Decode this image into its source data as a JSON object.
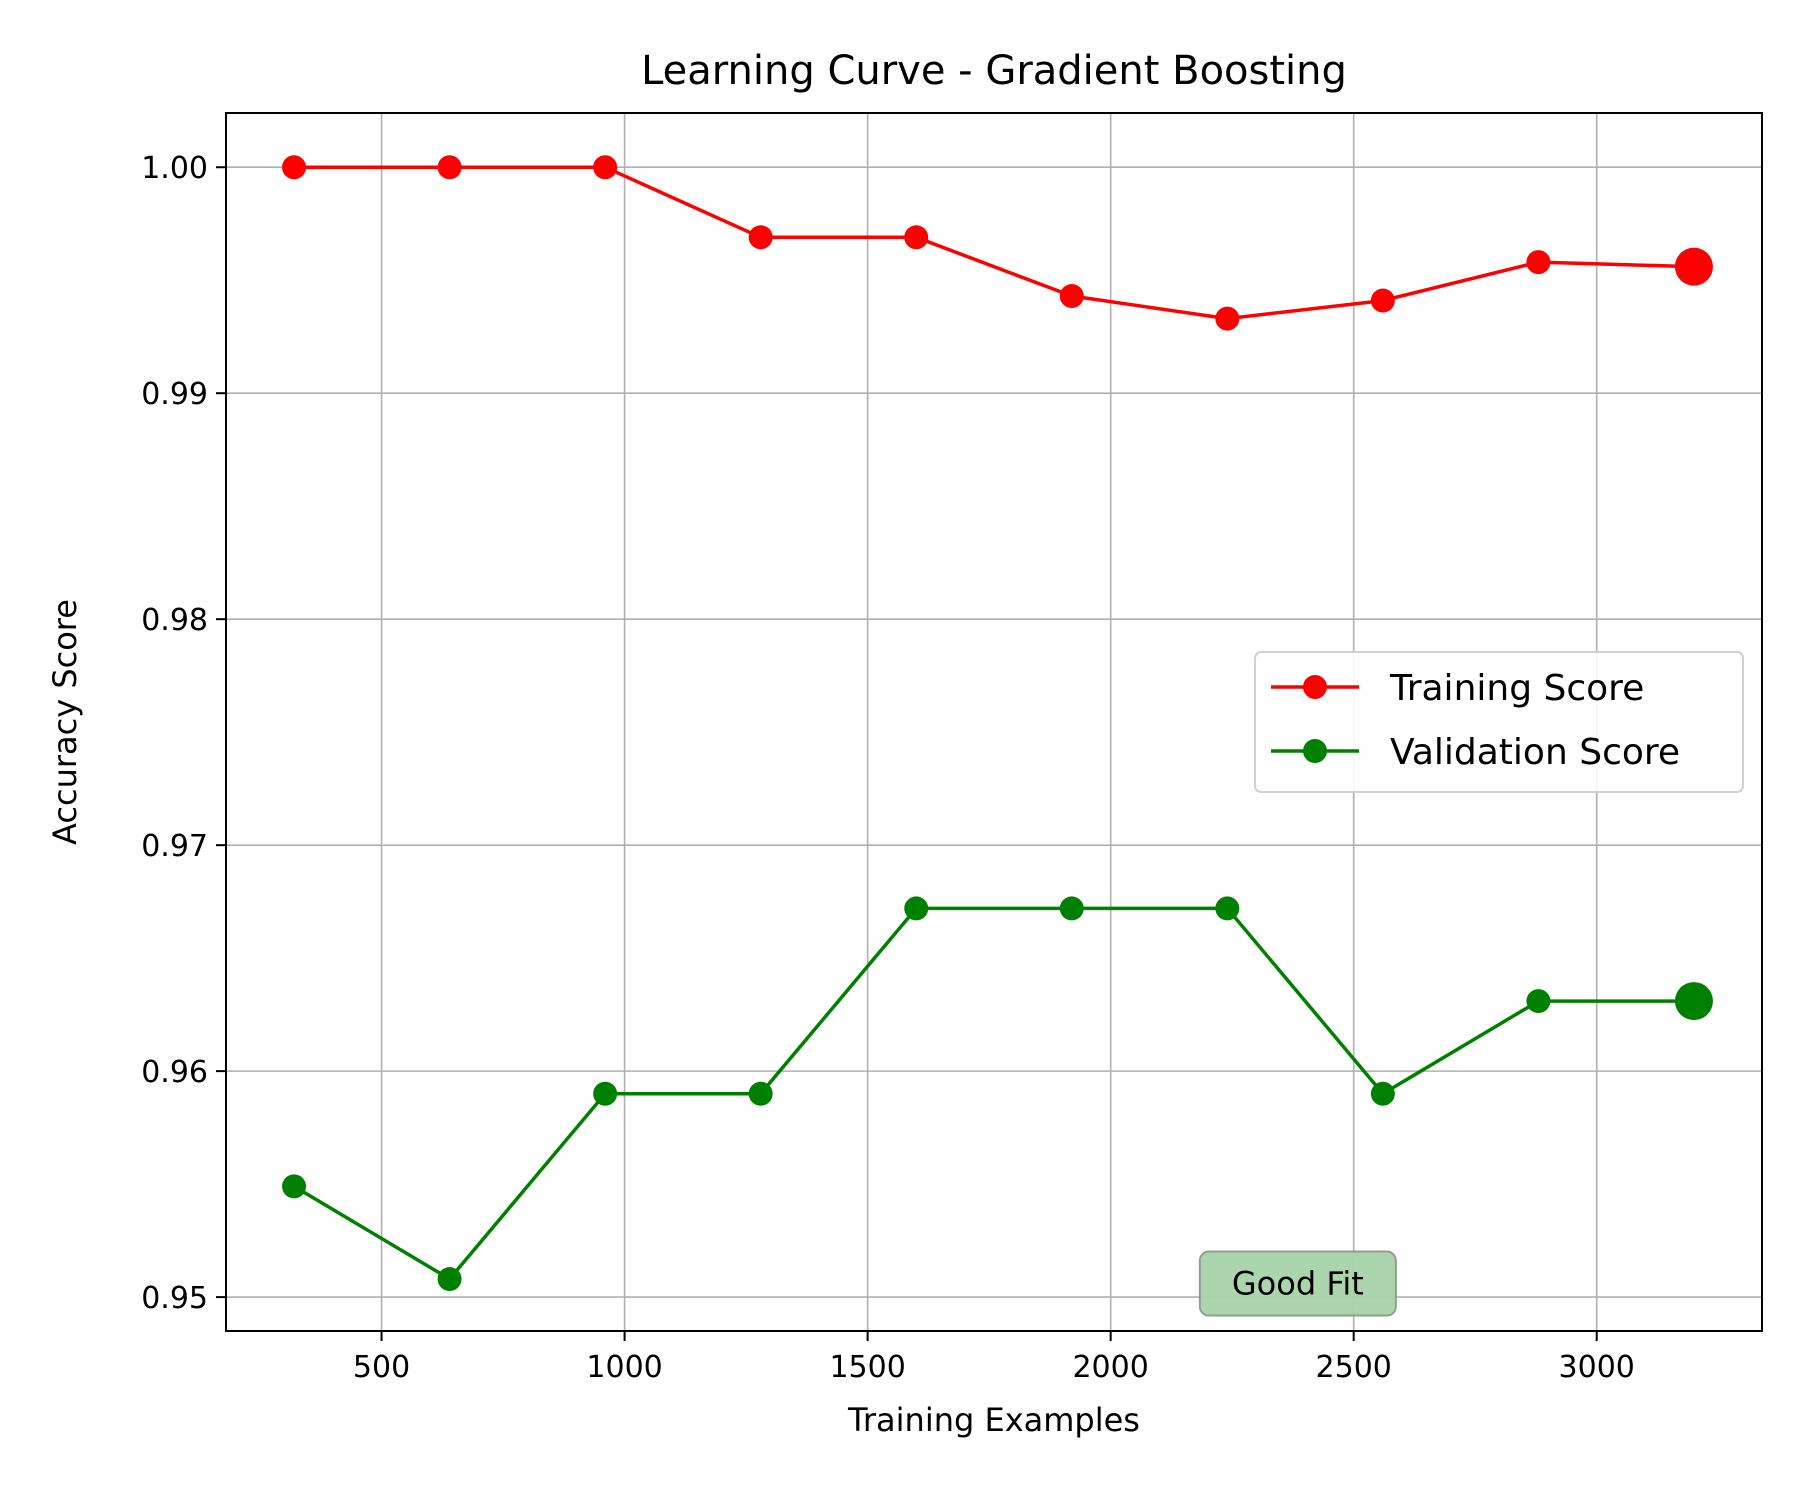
{
  "chart_data": {
    "type": "line",
    "title": "Learning Curve - Gradient Boosting",
    "xlabel": "Training Examples",
    "ylabel": "Accuracy Score",
    "xlim": [
      180,
      3340
    ],
    "ylim": [
      0.9485,
      1.0024
    ],
    "x_ticks": [
      500,
      1000,
      1500,
      2000,
      2500,
      3000
    ],
    "x_tick_labels": [
      "500",
      "1000",
      "1500",
      "2000",
      "2500",
      "3000"
    ],
    "y_ticks": [
      0.95,
      0.96,
      0.97,
      0.98,
      0.99,
      1.0
    ],
    "y_tick_labels": [
      "0.95",
      "0.96",
      "0.97",
      "0.98",
      "0.99",
      "1.00"
    ],
    "grid": true,
    "legend_position": "center-right",
    "x": [
      320,
      640,
      960,
      1280,
      1600,
      1920,
      2240,
      2560,
      2880,
      3200
    ],
    "series": [
      {
        "name": "Training Score",
        "color": "#ff0000",
        "values": [
          1.0,
          1.0,
          1.0,
          0.9969,
          0.9969,
          0.9943,
          0.9933,
          0.9941,
          0.9958,
          0.9956
        ],
        "highlight_last": true
      },
      {
        "name": "Validation Score",
        "color": "#008000",
        "values": [
          0.9549,
          0.9508,
          0.959,
          0.959,
          0.9672,
          0.9672,
          0.9672,
          0.959,
          0.9631,
          0.9631
        ],
        "highlight_last": true
      }
    ],
    "annotations": [
      {
        "text": "Good Fit",
        "x": 2560,
        "y": 0.9506,
        "background": "#a9d3a9"
      }
    ]
  }
}
